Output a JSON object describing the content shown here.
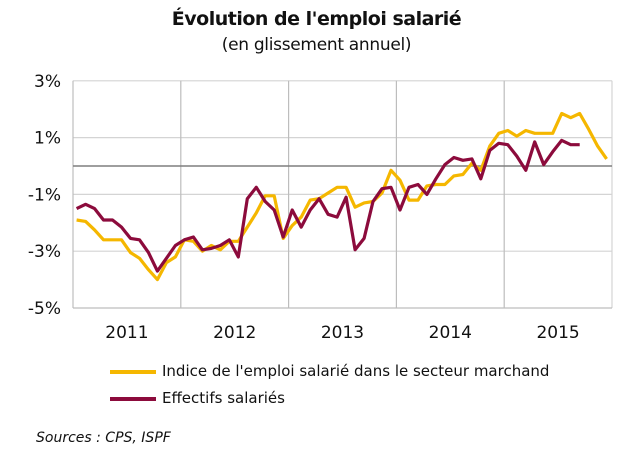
{
  "chart_data": {
    "type": "line",
    "title": "Évolution de l'emploi salarié",
    "subtitle": "(en glissement annuel)",
    "xlabel": "",
    "ylabel": "",
    "x_tick_labels": [
      "2011",
      "2012",
      "2013",
      "2014",
      "2015"
    ],
    "y_tick_labels": [
      "3%",
      "1%",
      "-1%",
      "-3%",
      "-5%"
    ],
    "y_ticks": [
      3,
      1,
      -1,
      -3,
      -5
    ],
    "ylim": [
      -5,
      3
    ],
    "x_range": [
      "2011-01",
      "2015-12"
    ],
    "frequency": "monthly",
    "grid": true,
    "legend_position": "bottom",
    "series": [
      {
        "name": "Indice de l'emploi salarié dans le secteur marchand",
        "color": "#F5B700",
        "start": "2011-01",
        "values": [
          -1.9,
          -1.95,
          -2.25,
          -2.6,
          -2.6,
          -2.6,
          -3.05,
          -3.25,
          -3.65,
          -4.0,
          -3.4,
          -3.2,
          -2.6,
          -2.65,
          -3.0,
          -2.8,
          -2.95,
          -2.65,
          -2.65,
          -2.15,
          -1.65,
          -1.05,
          -1.05,
          -2.55,
          -2.1,
          -1.8,
          -1.2,
          -1.15,
          -0.95,
          -0.75,
          -0.75,
          -1.45,
          -1.3,
          -1.25,
          -0.95,
          -0.15,
          -0.5,
          -1.2,
          -1.2,
          -0.7,
          -0.65,
          -0.65,
          -0.35,
          -0.3,
          0.1,
          -0.15,
          0.7,
          1.15,
          1.25,
          1.05,
          1.25,
          1.15,
          1.15,
          1.15,
          1.85,
          1.7,
          1.85,
          1.3,
          0.7,
          0.25
        ]
      },
      {
        "name": "Effectifs salariés",
        "color": "#8C0B3C",
        "start": "2011-01",
        "values": [
          -1.5,
          -1.35,
          -1.5,
          -1.9,
          -1.9,
          -2.15,
          -2.55,
          -2.6,
          -3.05,
          -3.7,
          -3.25,
          -2.8,
          -2.6,
          -2.5,
          -2.95,
          -2.9,
          -2.8,
          -2.6,
          -3.2,
          -1.15,
          -0.75,
          -1.25,
          -1.55,
          -2.5,
          -1.55,
          -2.15,
          -1.55,
          -1.15,
          -1.7,
          -1.8,
          -1.1,
          -2.95,
          -2.55,
          -1.25,
          -0.8,
          -0.75,
          -1.55,
          -0.75,
          -0.65,
          -1.0,
          -0.45,
          0.05,
          0.3,
          0.2,
          0.25,
          -0.45,
          0.55,
          0.8,
          0.75,
          0.35,
          -0.15,
          0.85,
          0.05,
          0.5,
          0.9,
          0.75,
          0.75
        ]
      }
    ]
  },
  "sources": "Sources : CPS, ISPF"
}
